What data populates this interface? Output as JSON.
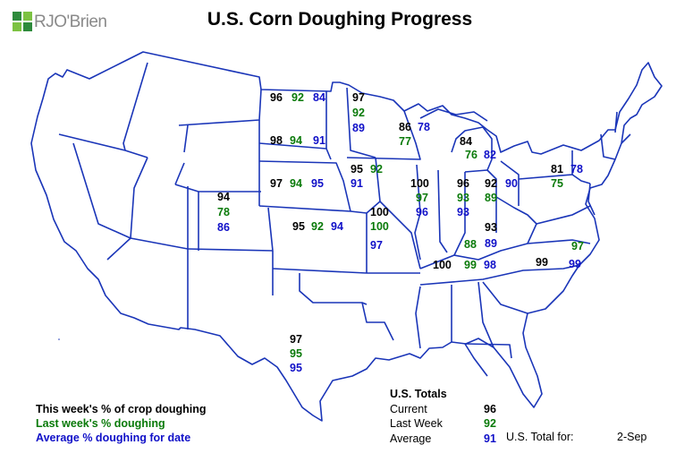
{
  "brand": {
    "logo_text": "RJO'Brien",
    "logo_colors": [
      "#2e8b3c",
      "#7cc242"
    ]
  },
  "title": "U.S. Corn Doughing Progress",
  "colors": {
    "current": "#000000",
    "last_week": "#0a7a0a",
    "average": "#1010c8"
  },
  "states": [
    {
      "state": "North Dakota",
      "current": "96",
      "last_week": "92",
      "average": "84"
    },
    {
      "state": "Minnesota",
      "current": "97",
      "last_week": "92",
      "average": "89"
    },
    {
      "state": "South Dakota",
      "current": "98",
      "last_week": "94",
      "average": "91"
    },
    {
      "state": "Wisconsin",
      "current": "86",
      "last_week": "77",
      "average": "78"
    },
    {
      "state": "Michigan",
      "current": "84",
      "last_week": "76",
      "average": "82"
    },
    {
      "state": "Nebraska",
      "current": "97",
      "last_week": "94",
      "average": "95"
    },
    {
      "state": "Iowa",
      "current": "95",
      "last_week": "92",
      "average": "91"
    },
    {
      "state": "Colorado",
      "current": "94",
      "last_week": "78",
      "average": "86"
    },
    {
      "state": "Illinois",
      "current": "100",
      "last_week": "97",
      "average": "96"
    },
    {
      "state": "Indiana",
      "current": "96",
      "last_week": "93",
      "average": "93"
    },
    {
      "state": "Ohio",
      "current": "92",
      "last_week": "89",
      "average": "90"
    },
    {
      "state": "Pennsylvania",
      "current": "81",
      "last_week": "75",
      "average": "78"
    },
    {
      "state": "Kansas",
      "current": "95",
      "last_week": "92",
      "average": "94"
    },
    {
      "state": "Missouri",
      "current": "100",
      "last_week": "100",
      "average": "97"
    },
    {
      "state": "Kentucky",
      "current": "93",
      "last_week": "88",
      "average": "89"
    },
    {
      "state": "Tennessee",
      "current": "100",
      "last_week": "99",
      "average": "98"
    },
    {
      "state": "North Carolina",
      "current": "99",
      "last_week": "97",
      "average": "99"
    },
    {
      "state": "Texas",
      "current": "97",
      "last_week": "95",
      "average": "95"
    }
  ],
  "legend": {
    "current": "This week's % of crop doughing",
    "last_week": "Last week's % doughing",
    "average": "Average % doughing for date"
  },
  "totals": {
    "heading": "U.S. Totals",
    "rows": [
      {
        "name": "Current",
        "value": "96"
      },
      {
        "name": "Last Week",
        "value": "92"
      },
      {
        "name": "Average",
        "value": "91"
      }
    ],
    "date_label": "U.S. Total for:",
    "date": "2-Sep"
  }
}
